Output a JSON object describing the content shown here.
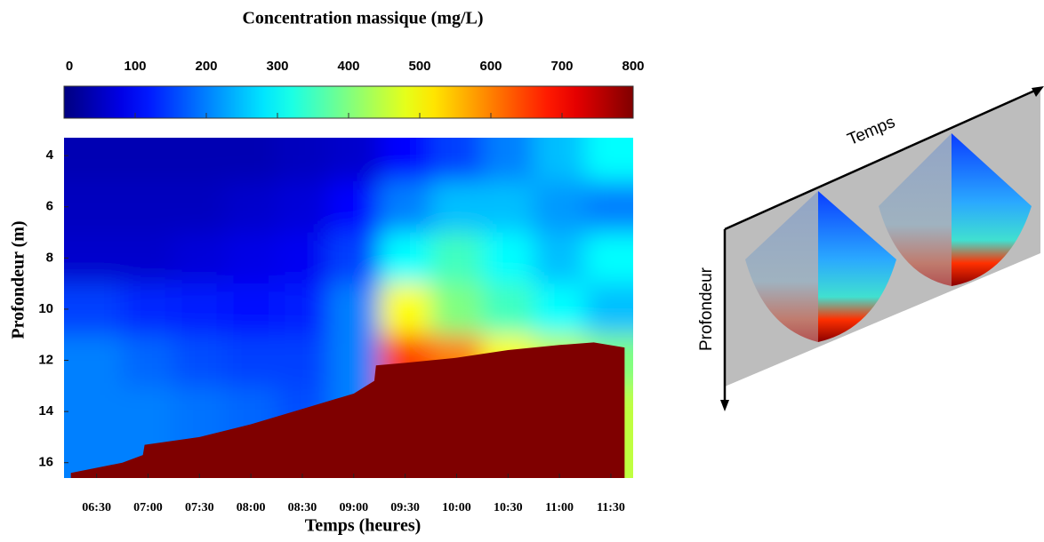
{
  "chart_data": {
    "type": "heatmap",
    "title": "Concentration massique (mg/L)",
    "xlabel": "Temps (heures)",
    "ylabel": "Profondeur (m)",
    "colorbar": {
      "lim": [
        0,
        800
      ],
      "ticks": [
        0,
        100,
        200,
        300,
        400,
        500,
        600,
        700,
        800
      ]
    },
    "xlim": [
      371,
      703
    ],
    "xticks": [
      {
        "value": 390,
        "label": "06:30"
      },
      {
        "value": 420,
        "label": "07:00"
      },
      {
        "value": 450,
        "label": "07:30"
      },
      {
        "value": 480,
        "label": "08:00"
      },
      {
        "value": 510,
        "label": "08:30"
      },
      {
        "value": 540,
        "label": "09:00"
      },
      {
        "value": 570,
        "label": "09:30"
      },
      {
        "value": 600,
        "label": "10:00"
      },
      {
        "value": 630,
        "label": "10:30"
      },
      {
        "value": 660,
        "label": "11:00"
      },
      {
        "value": 690,
        "label": "11:30"
      }
    ],
    "ylim": [
      3.3,
      16.6
    ],
    "yticks": [
      4,
      6,
      8,
      10,
      12,
      14,
      16
    ],
    "x": [
      390,
      420,
      450,
      480,
      510,
      540,
      570,
      600,
      630,
      660,
      690
    ],
    "y": [
      4,
      6,
      8,
      10,
      12,
      14,
      16
    ],
    "values": [
      [
        40,
        40,
        40,
        40,
        50,
        60,
        100,
        150,
        200,
        250,
        300
      ],
      [
        50,
        50,
        50,
        60,
        70,
        100,
        200,
        250,
        250,
        220,
        200
      ],
      [
        60,
        60,
        70,
        80,
        90,
        150,
        300,
        350,
        300,
        250,
        300
      ],
      [
        150,
        130,
        120,
        110,
        120,
        200,
        500,
        400,
        350,
        300,
        250
      ],
      [
        200,
        180,
        160,
        150,
        150,
        200,
        650,
        600,
        500,
        450,
        400
      ],
      [
        200,
        200,
        190,
        180,
        160,
        200,
        700,
        700,
        600,
        500,
        450
      ],
      [
        200,
        200,
        190,
        180,
        160,
        200,
        700,
        700,
        600,
        500,
        450
      ]
    ],
    "bed": {
      "color": "#7f0000",
      "x": [
        375,
        405,
        417,
        418,
        450,
        480,
        510,
        540,
        552,
        553,
        570,
        600,
        630,
        660,
        680,
        698
      ],
      "values": [
        16.4,
        16.0,
        15.7,
        15.3,
        15.0,
        14.5,
        13.9,
        13.3,
        12.8,
        12.2,
        12.1,
        11.9,
        11.6,
        11.4,
        11.3,
        11.5
      ]
    }
  },
  "diagram": {
    "time_label": "Temps",
    "depth_label": "Profondeur"
  }
}
